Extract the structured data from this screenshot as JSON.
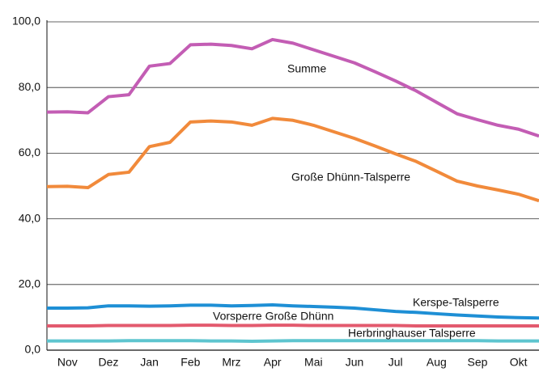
{
  "chart_data": {
    "type": "line",
    "x": [
      0,
      0.5,
      1,
      1.5,
      2,
      2.5,
      3,
      3.5,
      4,
      4.5,
      5,
      5.5,
      6,
      6.5,
      7,
      7.5,
      8,
      8.5,
      9,
      9.5,
      10,
      10.5,
      11,
      11.5,
      12
    ],
    "xlim": [
      0,
      12
    ],
    "xticks": [
      {
        "value": 0.5,
        "label": "Nov"
      },
      {
        "value": 1.5,
        "label": "Dez"
      },
      {
        "value": 2.5,
        "label": "Jan"
      },
      {
        "value": 3.5,
        "label": "Feb"
      },
      {
        "value": 4.5,
        "label": "Mrz"
      },
      {
        "value": 5.5,
        "label": "Apr"
      },
      {
        "value": 6.5,
        "label": "Mai"
      },
      {
        "value": 7.5,
        "label": "Jun"
      },
      {
        "value": 8.5,
        "label": "Jul"
      },
      {
        "value": 9.5,
        "label": "Aug"
      },
      {
        "value": 10.5,
        "label": "Sep"
      },
      {
        "value": 11.5,
        "label": "Okt"
      }
    ],
    "ylim": [
      0,
      100
    ],
    "yticks": [
      {
        "value": 0,
        "label": "0,0"
      },
      {
        "value": 20,
        "label": "20,0"
      },
      {
        "value": 40,
        "label": "40,0"
      },
      {
        "value": 60,
        "label": "60,0"
      },
      {
        "value": 80,
        "label": "80,0"
      },
      {
        "value": 100,
        "label": "100,0"
      }
    ],
    "grid": true,
    "series": [
      {
        "name": "Summe",
        "color": "#c35db4",
        "values": [
          72.5,
          72.6,
          72.3,
          77.2,
          77.8,
          86.5,
          87.3,
          93,
          93.2,
          92.8,
          91.8,
          94.6,
          93.5,
          91.5,
          89.5,
          87.5,
          84.8,
          82,
          79,
          75.5,
          72,
          70.2,
          68.5,
          67.3,
          65.2
        ]
      },
      {
        "name": "Große Dhünn-Talsperre",
        "color": "#f18a3b",
        "values": [
          49.8,
          49.9,
          49.5,
          53.5,
          54.2,
          62,
          63.3,
          69.5,
          69.8,
          69.5,
          68.5,
          70.6,
          70,
          68.5,
          66.5,
          64.5,
          62.2,
          59.8,
          57.5,
          54.5,
          51.5,
          50,
          48.8,
          47.5,
          45.5
        ]
      },
      {
        "name": "Kerspe-Talsperre",
        "color": "#1e8fd5",
        "values": [
          12.8,
          12.8,
          12.9,
          13.5,
          13.5,
          13.4,
          13.5,
          13.7,
          13.7,
          13.5,
          13.6,
          13.8,
          13.5,
          13.3,
          13.1,
          12.8,
          12.3,
          11.8,
          11.5,
          11.1,
          10.7,
          10.4,
          10.1,
          9.9,
          9.8
        ]
      },
      {
        "name": "Vorsperre Große Dhünn",
        "color": "#e35a6e",
        "values": [
          7.4,
          7.4,
          7.4,
          7.5,
          7.5,
          7.5,
          7.5,
          7.6,
          7.6,
          7.5,
          7.5,
          7.6,
          7.6,
          7.5,
          7.5,
          7.5,
          7.5,
          7.5,
          7.4,
          7.4,
          7.4,
          7.4,
          7.4,
          7.4,
          7.4
        ]
      },
      {
        "name": "Herbringhauser Talsperre",
        "color": "#5ec5cf",
        "values": [
          2.8,
          2.8,
          2.8,
          2.8,
          2.9,
          2.9,
          2.9,
          2.9,
          2.8,
          2.8,
          2.7,
          2.8,
          2.9,
          2.9,
          2.9,
          2.9,
          2.9,
          2.9,
          2.9,
          2.9,
          2.9,
          2.9,
          2.8,
          2.8,
          2.8
        ]
      }
    ]
  }
}
